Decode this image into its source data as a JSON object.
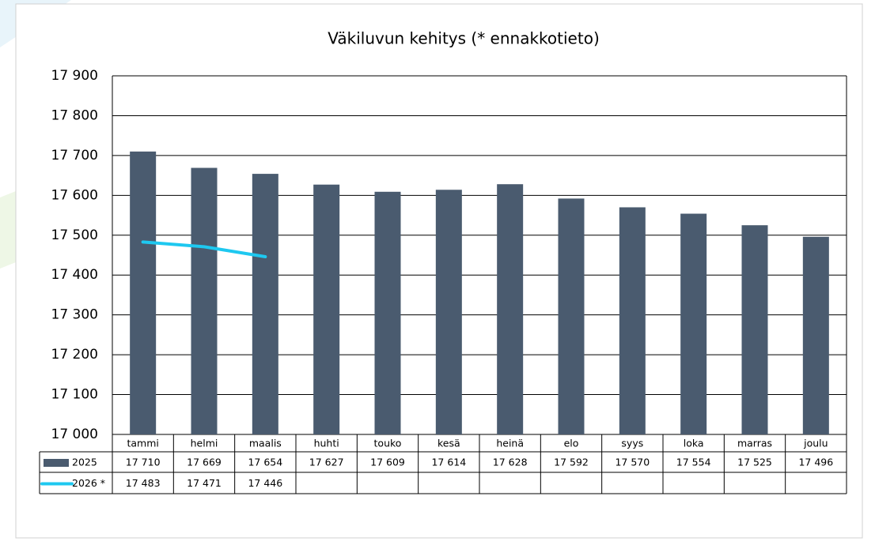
{
  "chart_data": {
    "type": "bar",
    "title": "Väkiluvun kehitys (* ennakkotieto)",
    "categories": [
      "tammi",
      "helmi",
      "maalis",
      "huhti",
      "touko",
      "kesä",
      "heinä",
      "elo",
      "syys",
      "loka",
      "marras",
      "joulu"
    ],
    "series": [
      {
        "name": "2025",
        "type": "bar",
        "color": "#4a5b6f",
        "values": [
          17710,
          17669,
          17654,
          17627,
          17609,
          17614,
          17628,
          17592,
          17570,
          17554,
          17525,
          17496
        ],
        "value_labels": [
          "17 710",
          "17 669",
          "17 654",
          "17 627",
          "17 609",
          "17 614",
          "17 628",
          "17 592",
          "17 570",
          "17 554",
          "17 525",
          "17 496"
        ]
      },
      {
        "name": "2026 *",
        "type": "line",
        "color": "#1ec8f0",
        "values": [
          17483,
          17471,
          17446,
          null,
          null,
          null,
          null,
          null,
          null,
          null,
          null,
          null
        ],
        "value_labels": [
          "17 483",
          "17 471",
          "17 446",
          null,
          null,
          null,
          null,
          null,
          null,
          null,
          null,
          null
        ]
      }
    ],
    "ylim": [
      17000,
      17900
    ],
    "yticks": [
      {
        "value": 17000,
        "label": "17 000"
      },
      {
        "value": 17100,
        "label": "17 100"
      },
      {
        "value": 17200,
        "label": "17 200"
      },
      {
        "value": 17300,
        "label": "17 300"
      },
      {
        "value": 17400,
        "label": "17 400"
      },
      {
        "value": 17500,
        "label": "17 500"
      },
      {
        "value": 17600,
        "label": "17 600"
      },
      {
        "value": 17700,
        "label": "17 700"
      },
      {
        "value": 17800,
        "label": "17 800"
      },
      {
        "value": 17900,
        "label": "17 900"
      }
    ],
    "grid": true
  }
}
